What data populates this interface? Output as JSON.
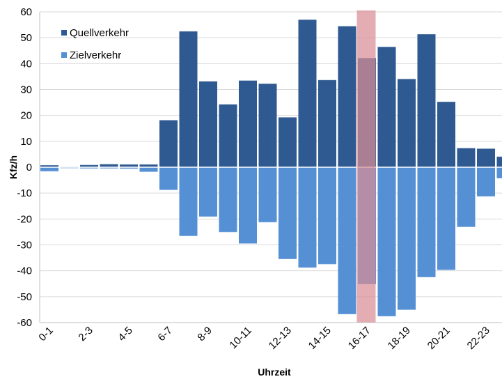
{
  "chart_data": {
    "type": "bar",
    "title": "",
    "xlabel": "Uhrzeit",
    "ylabel": "Kfz/h",
    "ylim": [
      -60,
      60
    ],
    "yticks": [
      60,
      50,
      40,
      30,
      20,
      10,
      0,
      -10,
      -20,
      -30,
      -40,
      -50,
      -60
    ],
    "grid": "horizontal",
    "legend_position": "top-left",
    "categories": [
      "0-1",
      "1-2",
      "2-3",
      "3-4",
      "4-5",
      "5-6",
      "6-7",
      "7-8",
      "8-9",
      "9-10",
      "10-11",
      "11-12",
      "12-13",
      "13-14",
      "14-15",
      "15-16",
      "16-17",
      "17-18",
      "18-19",
      "19-20",
      "20-21",
      "21-22",
      "22-23",
      "23-24"
    ],
    "shown_category_labels": [
      "0-1",
      "2-3",
      "4-5",
      "6-7",
      "8-9",
      "10-11",
      "12-13",
      "14-15",
      "16-17",
      "18-19",
      "20-21",
      "22-23"
    ],
    "series": [
      {
        "name": "Quellverkehr",
        "color": "#2f5a91",
        "values": [
          0.8,
          0.2,
          0.9,
          1.2,
          1.1,
          1.1,
          18.2,
          52.5,
          33.2,
          24.3,
          33.5,
          32.3,
          19.3,
          57.0,
          33.7,
          54.5,
          42.2,
          46.5,
          34.1,
          51.4,
          25.3,
          7.4,
          7.2,
          4.1
        ]
      },
      {
        "name": "Zielverkehr",
        "color": "#5590d5",
        "values": [
          -1.6,
          -0.4,
          -0.5,
          -0.5,
          -0.6,
          -1.8,
          -8.8,
          -26.6,
          -19.1,
          -25.1,
          -29.5,
          -21.3,
          -35.5,
          -38.8,
          -37.5,
          -56.8,
          -45.2,
          -57.6,
          -55.1,
          -42.5,
          -39.7,
          -23.1,
          -11.3,
          -4.3
        ]
      }
    ],
    "highlight": {
      "category": "16-17",
      "color": "#d98e96"
    }
  }
}
